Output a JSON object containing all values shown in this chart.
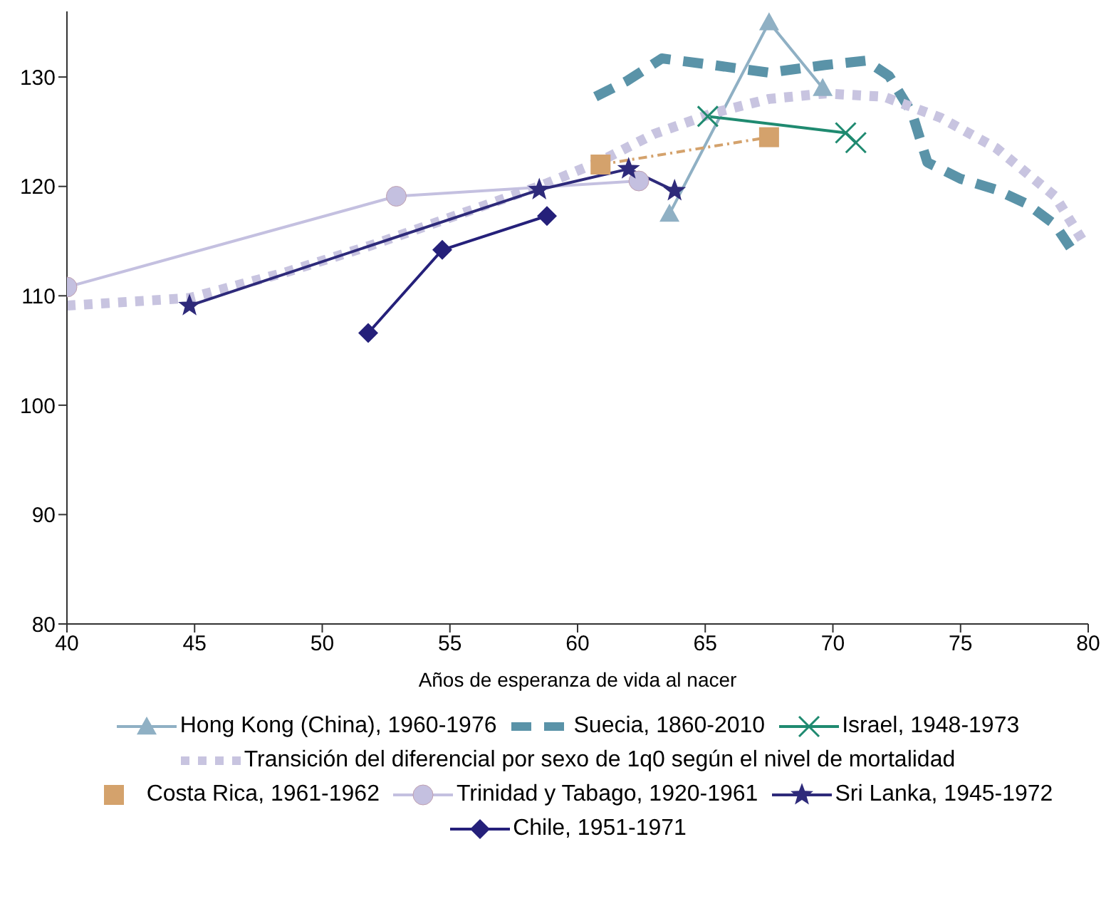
{
  "chart_data": {
    "type": "line",
    "xlabel": "Años de esperanza de vida al nacer",
    "xlim": [
      40,
      80
    ],
    "xticks": [
      40,
      45,
      50,
      55,
      60,
      65,
      70,
      75,
      80
    ],
    "ylim": [
      80,
      136
    ],
    "yticks": [
      80,
      90,
      100,
      110,
      120,
      130
    ],
    "grid": false,
    "legend": "bottom",
    "series": [
      {
        "name": "Hong Kong (China), 1960-1976",
        "color": "#8fb0c4",
        "marker": "triangle",
        "line_style": "solid",
        "x": [
          63.6,
          67.5,
          69.6
        ],
        "values": [
          117.5,
          135,
          129.0
        ]
      },
      {
        "name": "Suecia, 1860-2010",
        "color": "#5a93a8",
        "marker": "none",
        "line_style": "dashed",
        "x": [
          60.7,
          61.9,
          63.3,
          65.3,
          67.5,
          69.7,
          71.3,
          72.2,
          73.1,
          73.7,
          75.0,
          76.4,
          77.6,
          78.7,
          79.3
        ],
        "values": [
          128.2,
          129.6,
          131.7,
          131.1,
          130.4,
          131.1,
          131.5,
          130.1,
          126.7,
          122.2,
          120.7,
          119.7,
          118.4,
          116.5,
          114.4
        ]
      },
      {
        "name": "Israel, 1948-1973",
        "color": "#1f8a70",
        "marker": "cross",
        "line_style": "solid",
        "x": [
          65.1,
          70.5,
          70.9
        ],
        "values": [
          126.4,
          124.9,
          124.0
        ]
      },
      {
        "name": "Transición del diferencial por sexo de 1q0 según el nivel de mortalidad",
        "color": "#c8c4e0",
        "marker": "none",
        "line_style": "dotted",
        "x": [
          40,
          44.8,
          48.5,
          51.9,
          55.8,
          58.6,
          60.8,
          63.0,
          65.3,
          67.5,
          69.7,
          72.0,
          74.2,
          76.4,
          78.7,
          79.9
        ],
        "values": [
          109.1,
          109.8,
          112.1,
          114.6,
          117.8,
          120.1,
          122.2,
          124.8,
          126.7,
          128.0,
          128.5,
          128.2,
          126.3,
          123.5,
          119.1,
          114.6
        ]
      },
      {
        "name": "Costa Rica, 1961-1962",
        "color": "#d4a26c",
        "marker": "square",
        "line_style": "dashed",
        "x": [
          60.9,
          67.5
        ],
        "values": [
          122.0,
          124.5
        ]
      },
      {
        "name": "Trinidad y Tabago, 1920-1961",
        "color": "#c4c0e0",
        "marker": "circle",
        "line_style": "solid",
        "x": [
          40,
          52.9,
          62.4
        ],
        "values": [
          110.8,
          119.1,
          120.5
        ]
      },
      {
        "name": "Sri Lanka, 1945-1972",
        "color": "#2e2a7a",
        "marker": "star",
        "line_style": "solid",
        "x": [
          44.8,
          58.5,
          62.0,
          63.8
        ],
        "values": [
          109.1,
          119.7,
          121.6,
          119.6
        ]
      },
      {
        "name": "Chile, 1951-1971",
        "color": "#25207a",
        "marker": "diamond",
        "line_style": "solid",
        "x": [
          51.8,
          54.7,
          58.8
        ],
        "values": [
          106.6,
          114.2,
          117.3
        ]
      }
    ]
  }
}
